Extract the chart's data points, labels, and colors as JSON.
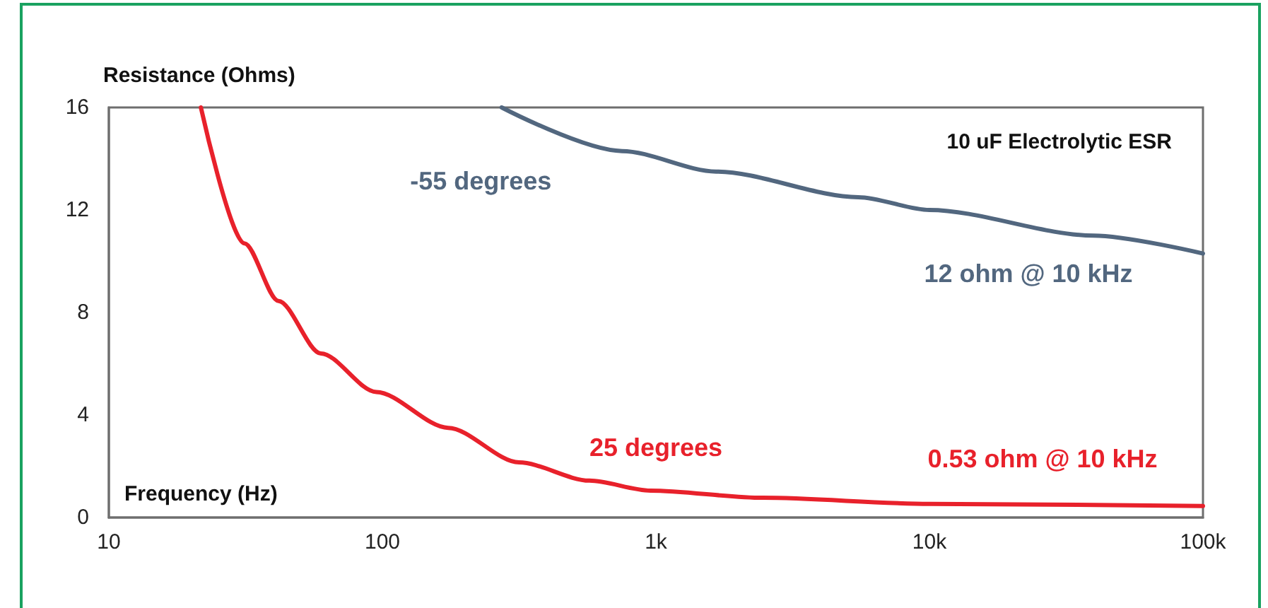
{
  "chart_data": {
    "type": "line",
    "title": "10 uF Electrolytic ESR",
    "xlabel": "Frequency (Hz)",
    "ylabel": "Resistance (Ohms)",
    "log": "x",
    "xlim": [
      10,
      100000
    ],
    "xticks": [
      10,
      100,
      {
        "value": 1000,
        "label": "1k"
      },
      {
        "value": 10000,
        "label": "10k"
      },
      {
        "value": 100000,
        "label": "100k"
      }
    ],
    "ylim": [
      0,
      16
    ],
    "yticks": [
      0,
      4,
      8,
      12,
      16
    ],
    "grid": false,
    "legend": false,
    "marker": "none",
    "line_style": "solid",
    "series": [
      {
        "name": "-55 degrees",
        "color": "#52677f",
        "x": [
          273,
          752,
          1660,
          5500,
          10000,
          39800,
          100000
        ],
        "values": [
          16,
          14.3,
          13.5,
          12.5,
          12,
          11,
          10.3
        ]
      },
      {
        "name": "25 degrees",
        "color": "#e8212b",
        "x": [
          21.7,
          31.3,
          41.7,
          59.6,
          95,
          174,
          316,
          571,
          955,
          2455,
          10000,
          100000
        ],
        "values": [
          16,
          10.7,
          8.45,
          6.4,
          4.9,
          3.5,
          2.15,
          1.44,
          1.05,
          0.77,
          0.53,
          0.45
        ]
      }
    ],
    "annotations": [
      {
        "text": "12 ohm @ 10 kHz",
        "x": 10000,
        "y": 12
      },
      {
        "text": "0.53 ohm @ 10 kHz",
        "x": 10000,
        "y": 0.53
      }
    ]
  }
}
